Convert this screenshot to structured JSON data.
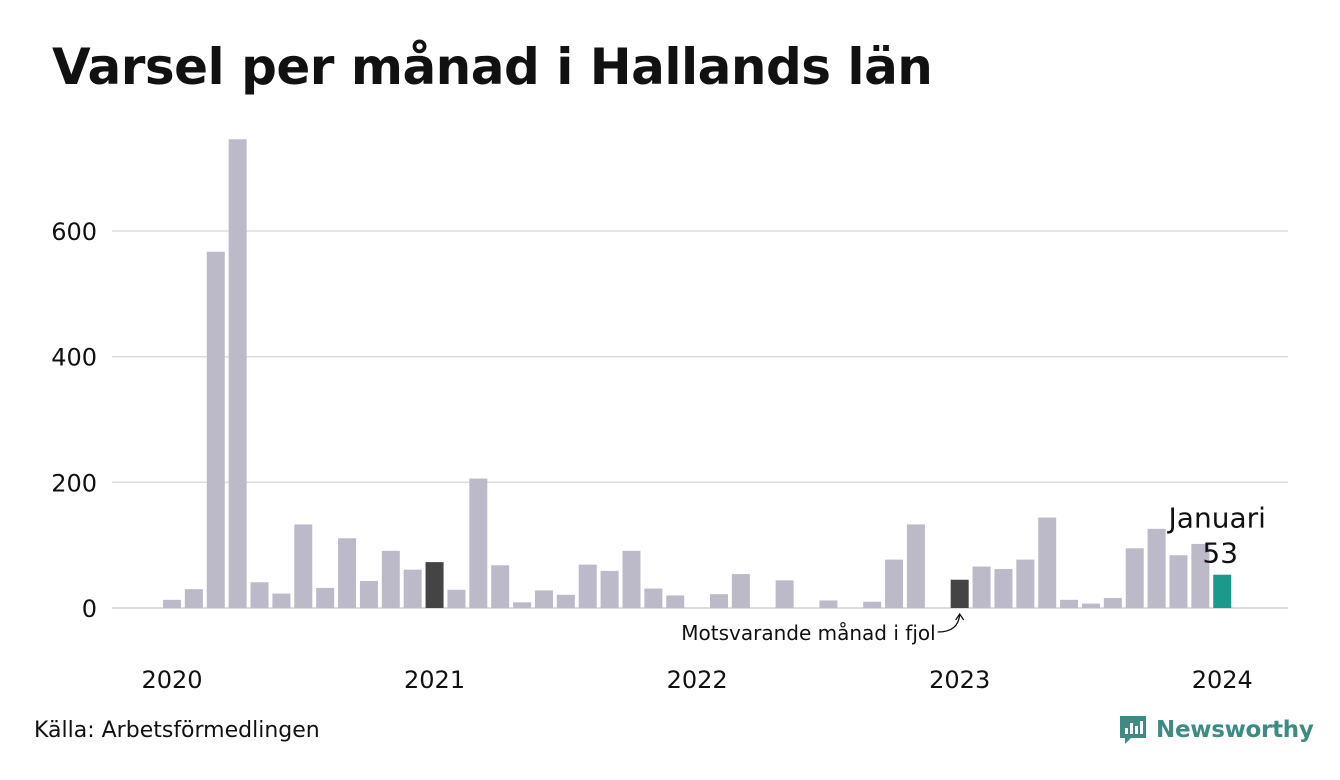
{
  "title": "Varsel per månad i Hallands län",
  "source": "Källa: Arbetsförmedlingen",
  "brand": {
    "name": "Newsworthy",
    "icon": "newsworthy-logo-icon",
    "color": "#3d8b83"
  },
  "colors": {
    "bar": "#bcbac8",
    "comparison": "#444444",
    "highlight": "#1a9a8a",
    "grid": "#dddddd"
  },
  "chart_data": {
    "type": "bar",
    "title": "Varsel per månad i Hallands län",
    "xlabel": "",
    "ylabel": "",
    "ylim": [
      0,
      750
    ],
    "yticks": [
      0,
      200,
      400,
      600
    ],
    "xticks": [
      "2020",
      "2021",
      "2022",
      "2023",
      "2024"
    ],
    "grid": true,
    "start_month": "2020-01",
    "values": [
      13,
      30,
      567,
      746,
      41,
      23,
      133,
      32,
      111,
      43,
      91,
      61,
      73,
      29,
      206,
      68,
      9,
      28,
      21,
      69,
      59,
      91,
      31,
      20,
      0,
      22,
      54,
      0,
      44,
      0,
      12,
      0,
      10,
      77,
      133,
      0,
      45,
      66,
      62,
      77,
      144,
      13,
      7,
      16,
      95,
      126,
      84,
      102,
      53
    ],
    "comparison_indices": [
      12,
      36
    ],
    "highlight_index": 48,
    "annotations": {
      "highlight_month": "Januari",
      "highlight_value": "53",
      "comparison_note": "Motsvarande månad i fjol"
    }
  }
}
